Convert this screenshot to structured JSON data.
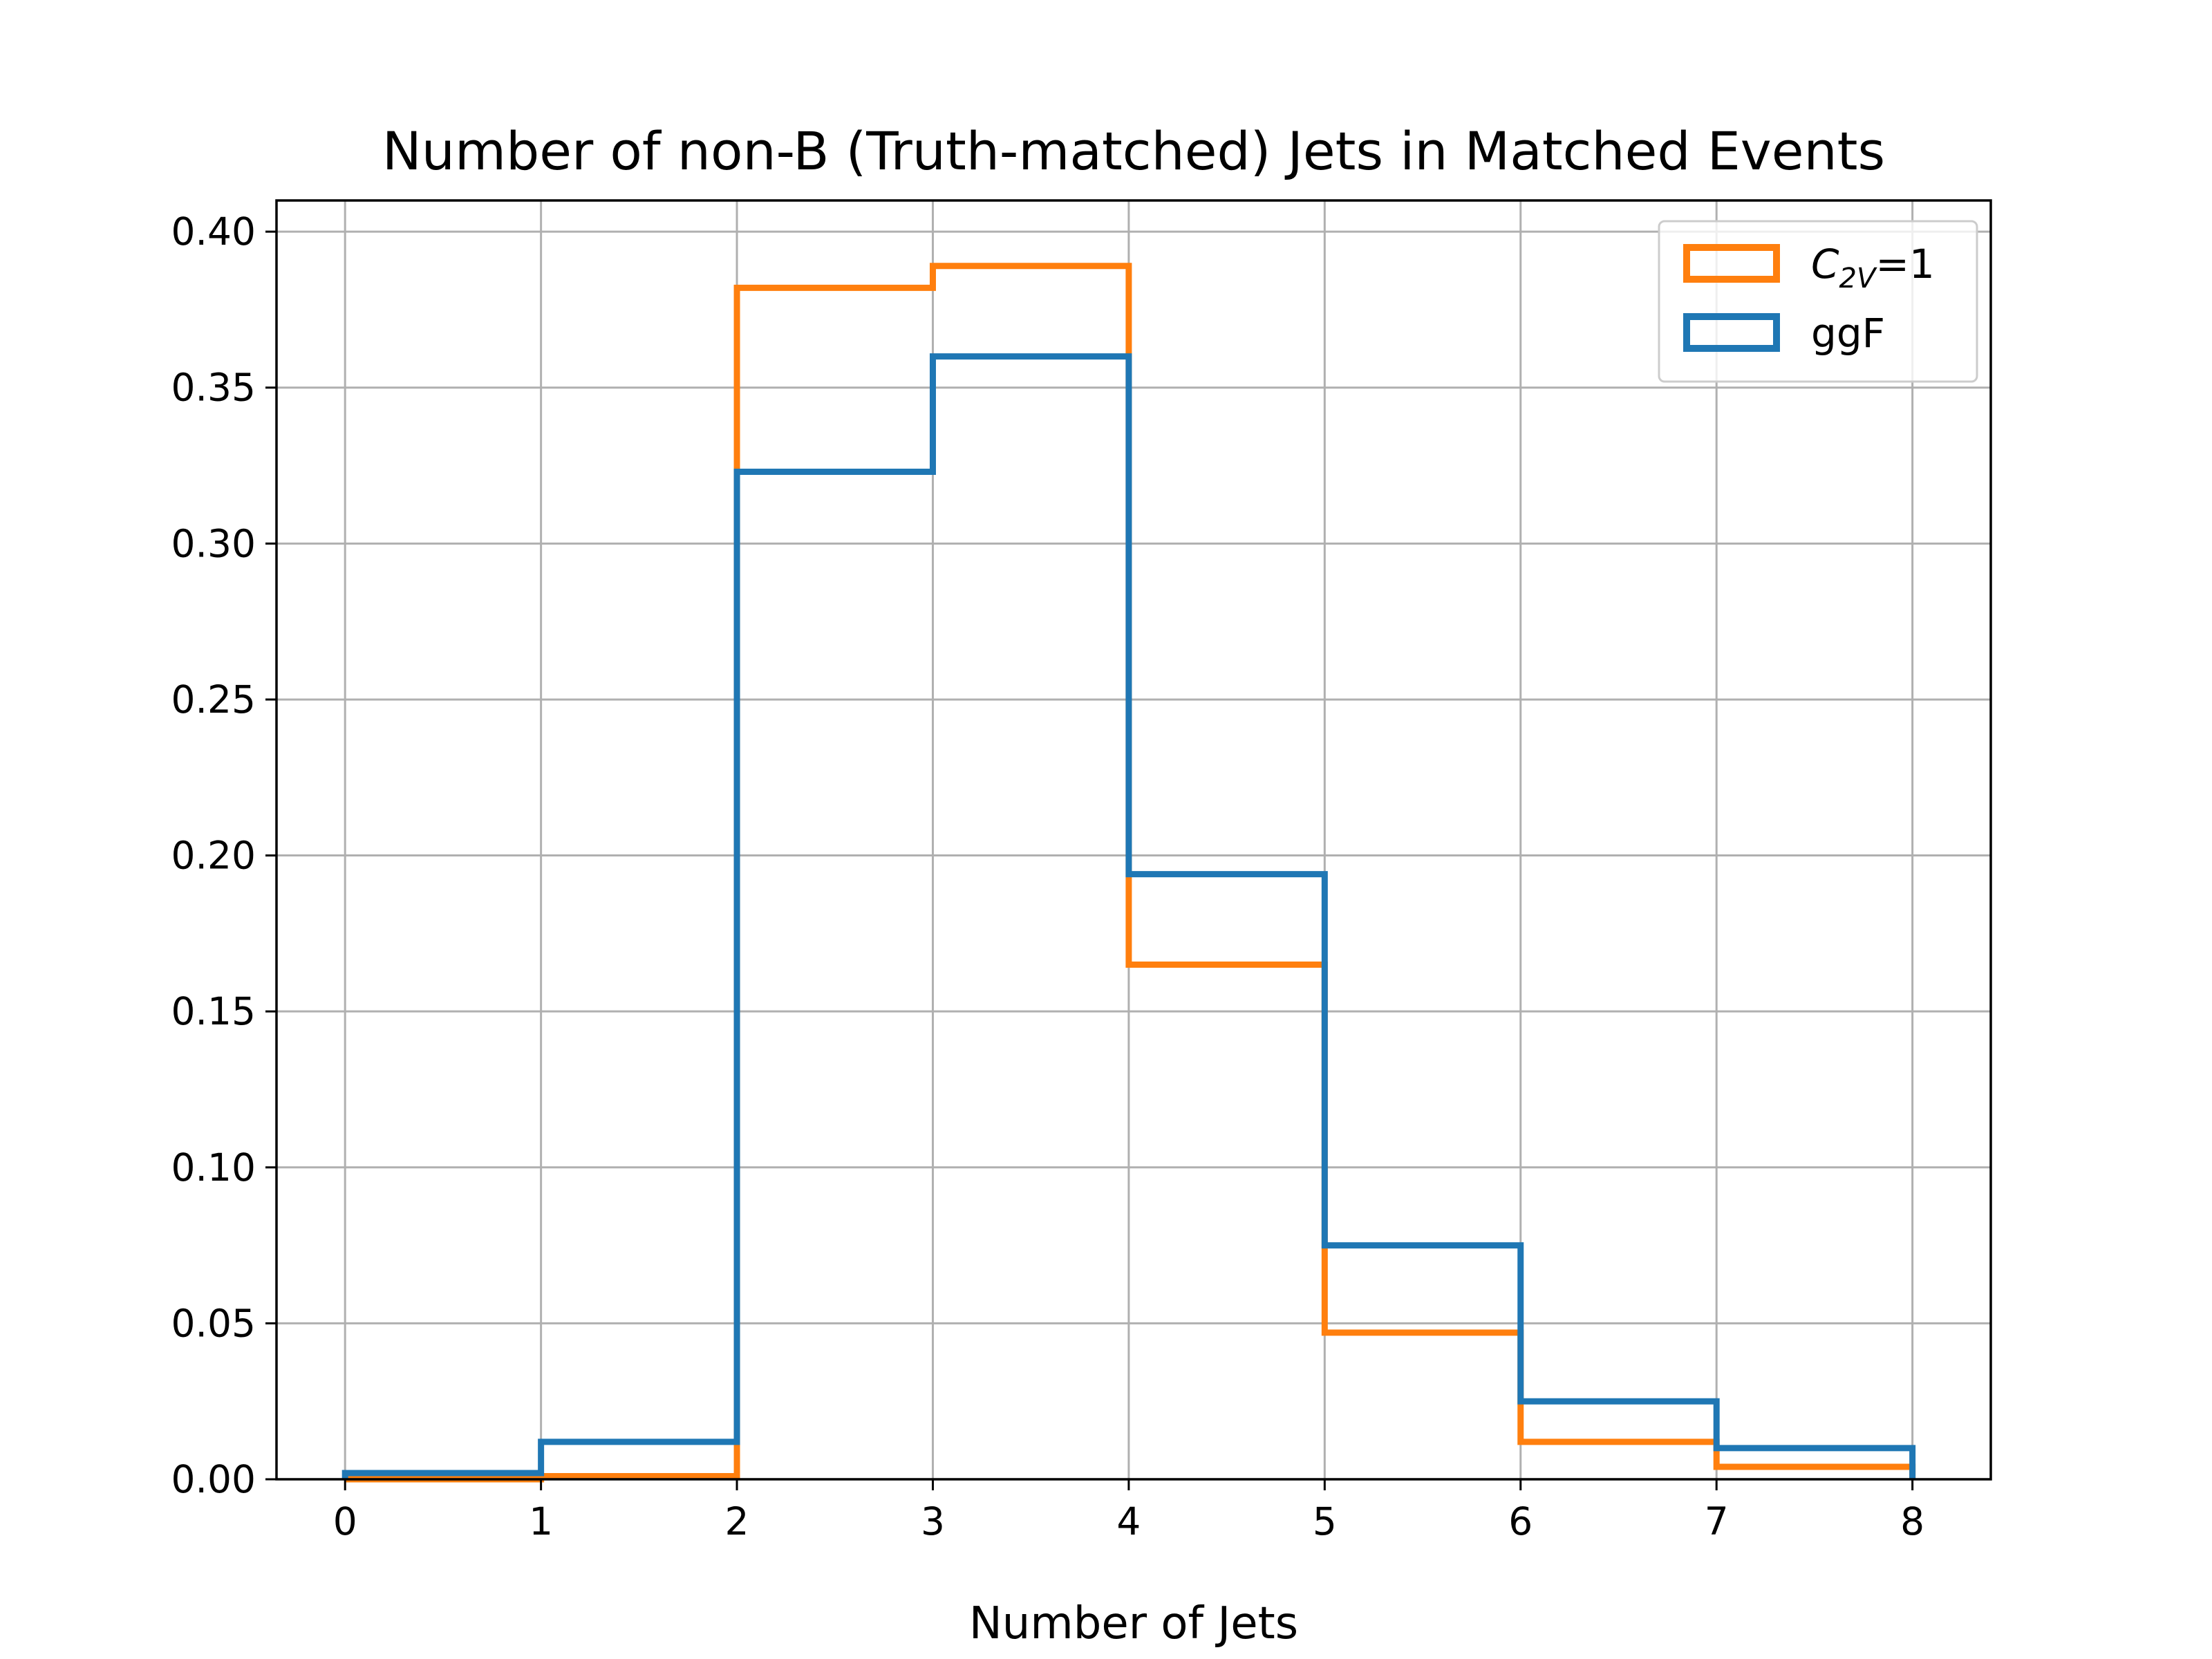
{
  "chart_data": {
    "type": "histogram",
    "title": "Number of non-B (Truth-matched) Jets in Matched Events",
    "xlabel": "Number of Jets",
    "ylabel": "",
    "xlim": [
      -0.35,
      8.4
    ],
    "ylim": [
      0,
      0.41
    ],
    "xticks": [
      0,
      1,
      2,
      3,
      4,
      5,
      6,
      7,
      8
    ],
    "xtick_labels": [
      "0",
      "1",
      "2",
      "3",
      "4",
      "5",
      "6",
      "7",
      "8"
    ],
    "yticks": [
      0,
      0.05,
      0.1,
      0.15,
      0.2,
      0.25,
      0.3,
      0.35,
      0.4
    ],
    "ytick_labels": [
      "0.00",
      "0.05",
      "0.10",
      "0.15",
      "0.20",
      "0.25",
      "0.30",
      "0.35",
      "0.40"
    ],
    "grid": true,
    "legend_position": "upper right",
    "bin_edges": [
      0,
      1,
      2,
      3,
      4,
      5,
      6,
      7,
      8
    ],
    "series": [
      {
        "name_base": "C",
        "name_sub": "2V",
        "name_rest": "=1",
        "color": "#ff7f0e",
        "values": [
          0.0,
          0.001,
          0.382,
          0.389,
          0.165,
          0.047,
          0.012,
          0.004
        ]
      },
      {
        "name": "ggF",
        "color": "#1f77b4",
        "values": [
          0.002,
          0.012,
          0.323,
          0.36,
          0.194,
          0.075,
          0.025,
          0.01
        ]
      }
    ]
  }
}
